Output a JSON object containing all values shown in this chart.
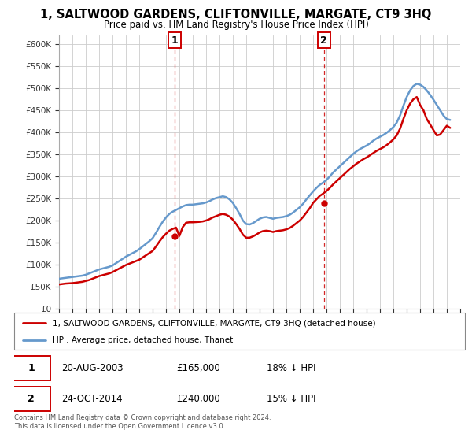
{
  "title": "1, SALTWOOD GARDENS, CLIFTONVILLE, MARGATE, CT9 3HQ",
  "subtitle": "Price paid vs. HM Land Registry's House Price Index (HPI)",
  "ylim": [
    0,
    620000
  ],
  "yticks": [
    0,
    50000,
    100000,
    150000,
    200000,
    250000,
    300000,
    350000,
    400000,
    450000,
    500000,
    550000,
    600000
  ],
  "ytick_labels": [
    "£0",
    "£50K",
    "£100K",
    "£150K",
    "£200K",
    "£250K",
    "£300K",
    "£350K",
    "£400K",
    "£450K",
    "£500K",
    "£550K",
    "£600K"
  ],
  "sale1_date_label": "20-AUG-2003",
  "sale1_price": 165000,
  "sale1_price_label": "£165,000",
  "sale1_pct_label": "18% ↓ HPI",
  "sale1_x": 2003.64,
  "sale2_date_label": "24-OCT-2014",
  "sale2_price": 240000,
  "sale2_price_label": "£240,000",
  "sale2_pct_label": "15% ↓ HPI",
  "sale2_x": 2014.81,
  "hpi_color": "#6699cc",
  "price_color": "#cc0000",
  "vline_color": "#cc0000",
  "background_color": "#ffffff",
  "grid_color": "#cccccc",
  "legend_label_price": "1, SALTWOOD GARDENS, CLIFTONVILLE, MARGATE, CT9 3HQ (detached house)",
  "legend_label_hpi": "HPI: Average price, detached house, Thanet",
  "footer": "Contains HM Land Registry data © Crown copyright and database right 2024.\nThis data is licensed under the Open Government Licence v3.0.",
  "hpi_data_x": [
    1995,
    1995.25,
    1995.5,
    1995.75,
    1996,
    1996.25,
    1996.5,
    1996.75,
    1997,
    1997.25,
    1997.5,
    1997.75,
    1998,
    1998.25,
    1998.5,
    1998.75,
    1999,
    1999.25,
    1999.5,
    1999.75,
    2000,
    2000.25,
    2000.5,
    2000.75,
    2001,
    2001.25,
    2001.5,
    2001.75,
    2002,
    2002.25,
    2002.5,
    2002.75,
    2003,
    2003.25,
    2003.5,
    2003.75,
    2004,
    2004.25,
    2004.5,
    2004.75,
    2005,
    2005.25,
    2005.5,
    2005.75,
    2006,
    2006.25,
    2006.5,
    2006.75,
    2007,
    2007.25,
    2007.5,
    2007.75,
    2008,
    2008.25,
    2008.5,
    2008.75,
    2009,
    2009.25,
    2009.5,
    2009.75,
    2010,
    2010.25,
    2010.5,
    2010.75,
    2011,
    2011.25,
    2011.5,
    2011.75,
    2012,
    2012.25,
    2012.5,
    2012.75,
    2013,
    2013.25,
    2013.5,
    2013.75,
    2014,
    2014.25,
    2014.5,
    2014.75,
    2015,
    2015.25,
    2015.5,
    2015.75,
    2016,
    2016.25,
    2016.5,
    2016.75,
    2017,
    2017.25,
    2017.5,
    2017.75,
    2018,
    2018.25,
    2018.5,
    2018.75,
    2019,
    2019.25,
    2019.5,
    2019.75,
    2020,
    2020.25,
    2020.5,
    2020.75,
    2021,
    2021.25,
    2021.5,
    2021.75,
    2022,
    2022.25,
    2022.5,
    2022.75,
    2023,
    2023.25,
    2023.5,
    2023.75,
    2024,
    2024.25
  ],
  "hpi_data_y": [
    68000,
    69000,
    70000,
    71000,
    72000,
    73000,
    74000,
    75000,
    77000,
    80000,
    83000,
    86000,
    89000,
    91000,
    93000,
    95000,
    98000,
    103000,
    108000,
    113000,
    118000,
    122000,
    126000,
    130000,
    135000,
    141000,
    147000,
    153000,
    160000,
    172000,
    185000,
    197000,
    207000,
    215000,
    220000,
    224000,
    228000,
    232000,
    235000,
    236000,
    236000,
    237000,
    238000,
    239000,
    241000,
    244000,
    248000,
    251000,
    253000,
    255000,
    253000,
    248000,
    240000,
    228000,
    215000,
    200000,
    192000,
    191000,
    194000,
    199000,
    204000,
    207000,
    208000,
    206000,
    204000,
    206000,
    207000,
    208000,
    210000,
    213000,
    218000,
    224000,
    230000,
    238000,
    248000,
    257000,
    266000,
    274000,
    281000,
    286000,
    292000,
    300000,
    309000,
    316000,
    323000,
    330000,
    337000,
    344000,
    351000,
    357000,
    362000,
    366000,
    370000,
    375000,
    381000,
    386000,
    390000,
    394000,
    399000,
    405000,
    412000,
    422000,
    438000,
    460000,
    480000,
    495000,
    505000,
    510000,
    508000,
    503000,
    495000,
    485000,
    474000,
    462000,
    450000,
    438000,
    430000,
    428000
  ],
  "price_data_x": [
    1995,
    1995.25,
    1995.5,
    1995.75,
    1996,
    1996.25,
    1996.5,
    1996.75,
    1997,
    1997.25,
    1997.5,
    1997.75,
    1998,
    1998.25,
    1998.5,
    1998.75,
    1999,
    1999.25,
    1999.5,
    1999.75,
    2000,
    2000.25,
    2000.5,
    2000.75,
    2001,
    2001.25,
    2001.5,
    2001.75,
    2002,
    2002.25,
    2002.5,
    2002.75,
    2003,
    2003.25,
    2003.5,
    2003.75,
    2004,
    2004.25,
    2004.5,
    2004.75,
    2005,
    2005.25,
    2005.5,
    2005.75,
    2006,
    2006.25,
    2006.5,
    2006.75,
    2007,
    2007.25,
    2007.5,
    2007.75,
    2008,
    2008.25,
    2008.5,
    2008.75,
    2009,
    2009.25,
    2009.5,
    2009.75,
    2010,
    2010.25,
    2010.5,
    2010.75,
    2011,
    2011.25,
    2011.5,
    2011.75,
    2012,
    2012.25,
    2012.5,
    2012.75,
    2013,
    2013.25,
    2013.5,
    2013.75,
    2014,
    2014.25,
    2014.5,
    2014.75,
    2015,
    2015.25,
    2015.5,
    2015.75,
    2016,
    2016.25,
    2016.5,
    2016.75,
    2017,
    2017.25,
    2017.5,
    2017.75,
    2018,
    2018.25,
    2018.5,
    2018.75,
    2019,
    2019.25,
    2019.5,
    2019.75,
    2020,
    2020.25,
    2020.5,
    2020.75,
    2021,
    2021.25,
    2021.5,
    2021.75,
    2022,
    2022.25,
    2022.5,
    2022.75,
    2023,
    2023.25,
    2023.5,
    2023.75,
    2024,
    2024.25
  ],
  "price_data_y": [
    55000,
    56000,
    57000,
    57500,
    58000,
    59000,
    60000,
    61000,
    63000,
    65000,
    68000,
    71000,
    74000,
    76000,
    78000,
    80000,
    83000,
    87000,
    91000,
    95000,
    99000,
    102000,
    105000,
    108000,
    111000,
    116000,
    121000,
    126000,
    131000,
    141000,
    152000,
    162000,
    170000,
    177000,
    181000,
    184000,
    165000,
    185000,
    195000,
    196000,
    196000,
    196500,
    197000,
    198000,
    200000,
    203000,
    207000,
    210000,
    213000,
    215000,
    213000,
    209000,
    202000,
    192000,
    181000,
    168000,
    161000,
    161000,
    164000,
    168000,
    173000,
    176000,
    177000,
    176000,
    174000,
    176000,
    177000,
    178000,
    180000,
    183000,
    188000,
    194000,
    200000,
    208000,
    218000,
    228000,
    240000,
    248000,
    256000,
    261000,
    267000,
    274000,
    282000,
    289000,
    296000,
    303000,
    310000,
    317000,
    323000,
    329000,
    334000,
    339000,
    343000,
    348000,
    353000,
    358000,
    362000,
    366000,
    371000,
    377000,
    384000,
    393000,
    408000,
    430000,
    450000,
    465000,
    475000,
    480000,
    462000,
    450000,
    430000,
    418000,
    405000,
    393000,
    395000,
    405000,
    415000,
    410000
  ],
  "xlim_start": 1995,
  "xlim_end": 2025,
  "xtick_years": [
    1995,
    1996,
    1997,
    1998,
    1999,
    2000,
    2001,
    2002,
    2003,
    2004,
    2005,
    2006,
    2007,
    2008,
    2009,
    2010,
    2011,
    2012,
    2013,
    2014,
    2015,
    2016,
    2017,
    2018,
    2019,
    2020,
    2021,
    2022,
    2023,
    2024,
    2025
  ]
}
